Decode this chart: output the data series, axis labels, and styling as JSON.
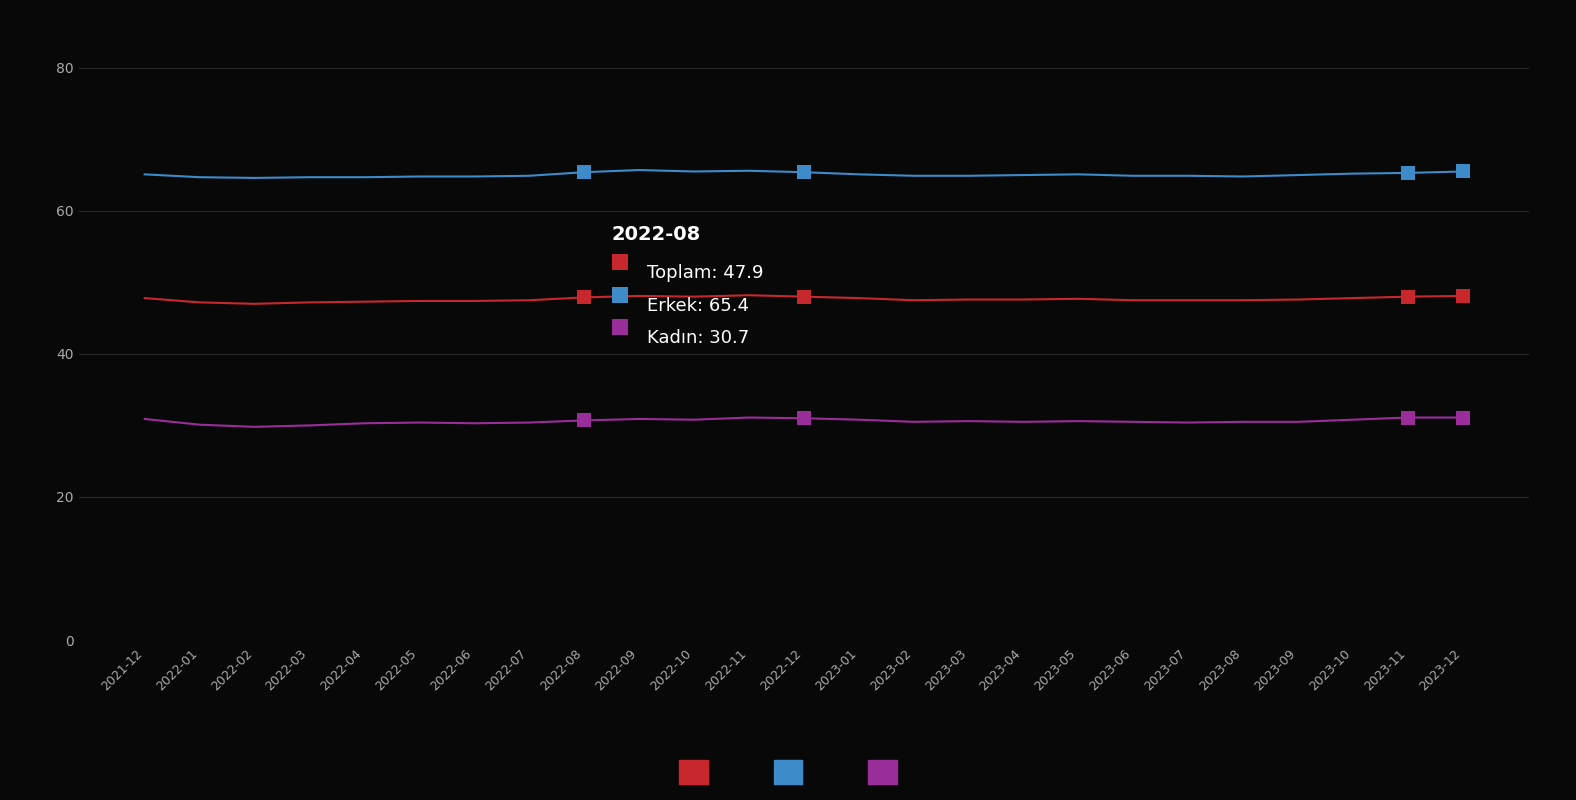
{
  "x_labels": [
    "2021-12",
    "2022-01",
    "2022-02",
    "2022-03",
    "2022-04",
    "2022-05",
    "2022-06",
    "2022-07",
    "2022-08",
    "2022-09",
    "2022-10",
    "2022-11",
    "2022-12",
    "2023-01",
    "2023-02",
    "2023-03",
    "2023-04",
    "2023-05",
    "2023-06",
    "2023-07",
    "2023-08",
    "2023-09",
    "2023-10",
    "2023-11",
    "2023-12"
  ],
  "toplam": [
    47.8,
    47.2,
    47.0,
    47.2,
    47.3,
    47.4,
    47.4,
    47.5,
    47.9,
    48.1,
    48.0,
    48.2,
    48.0,
    47.8,
    47.5,
    47.6,
    47.6,
    47.7,
    47.5,
    47.5,
    47.5,
    47.6,
    47.8,
    48.0,
    48.1
  ],
  "erkek": [
    65.1,
    64.7,
    64.6,
    64.7,
    64.7,
    64.8,
    64.8,
    64.9,
    65.4,
    65.7,
    65.5,
    65.6,
    65.4,
    65.1,
    64.9,
    64.9,
    65.0,
    65.1,
    64.9,
    64.9,
    64.8,
    65.0,
    65.2,
    65.3,
    65.5
  ],
  "kadin": [
    30.9,
    30.1,
    29.8,
    30.0,
    30.3,
    30.4,
    30.3,
    30.4,
    30.7,
    30.9,
    30.8,
    31.1,
    31.0,
    30.8,
    30.5,
    30.6,
    30.5,
    30.6,
    30.5,
    30.4,
    30.5,
    30.5,
    30.8,
    31.1,
    31.1
  ],
  "highlighted_index": 8,
  "highlighted_label": "2022-08",
  "annotation_toplam": "47.9",
  "annotation_erkek": "65.4",
  "annotation_kadin": "30.7",
  "toplam_color": "#c8282d",
  "erkek_color": "#3d8bc8",
  "kadin_color": "#9b2d9b",
  "background_color": "#080808",
  "text_color": "#aaaaaa",
  "grid_color": "#2a2a2a",
  "ylim": [
    0,
    85
  ],
  "yticks": [
    0,
    20,
    40,
    60,
    80
  ],
  "marker_indices": [
    8,
    12,
    23,
    24
  ],
  "marker_style": "s",
  "marker_size": 10,
  "linewidth": 1.5,
  "ann_title_fontsize": 14,
  "ann_body_fontsize": 13,
  "legend_colors": [
    "#c8282d",
    "#3d8bc8",
    "#9b2d9b"
  ]
}
